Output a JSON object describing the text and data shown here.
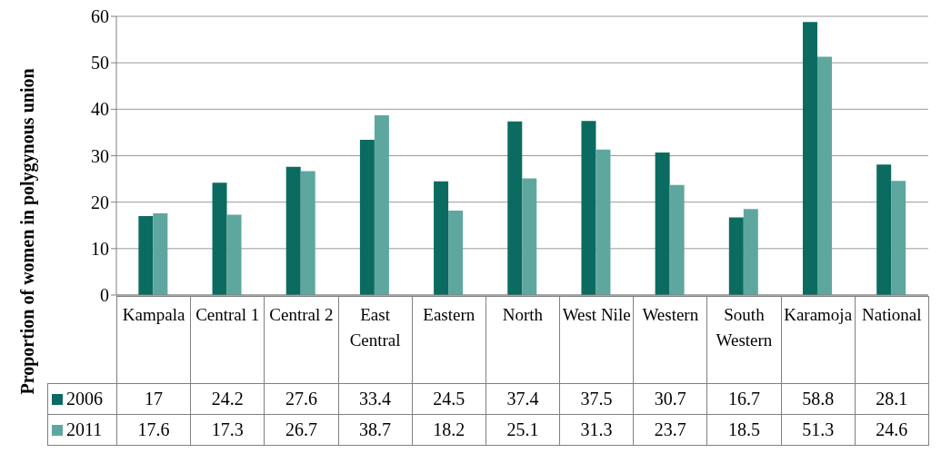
{
  "chart_data": {
    "type": "bar",
    "ylabel": "Proportion of women in polygynous union",
    "categories": [
      "Kampala",
      "Central 1",
      "Central 2",
      "East Central",
      "Eastern",
      "North",
      "West Nile",
      "Western",
      "South Western",
      "Karamoja",
      "National"
    ],
    "series": [
      {
        "name": "2006",
        "color": "#0b6b61",
        "values": [
          17,
          24.2,
          27.6,
          33.4,
          24.5,
          37.4,
          37.5,
          30.7,
          16.7,
          58.8,
          28.1
        ]
      },
      {
        "name": "2011",
        "color": "#5ea79f",
        "values": [
          17.6,
          17.3,
          26.7,
          38.7,
          18.2,
          25.1,
          31.3,
          23.7,
          18.5,
          51.3,
          24.6
        ]
      }
    ],
    "ylim": [
      0,
      60
    ],
    "yticks": [
      0,
      10,
      20,
      30,
      40,
      50,
      60
    ],
    "grid": "y",
    "legend": "bottom",
    "data_labels": true
  }
}
